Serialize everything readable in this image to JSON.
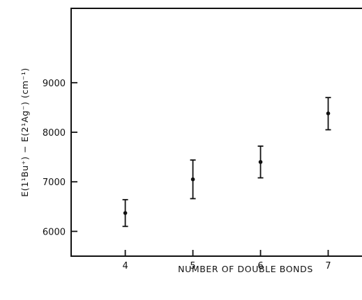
{
  "chart_data": {
    "type": "scatter",
    "title": "",
    "xlabel": "NUMBER OF DOUBLE BONDS",
    "ylabel": "E(1¹Bu⁺) − E(2¹Ag⁻) (cm⁻¹)",
    "x_ticks": [
      4,
      5,
      6,
      7
    ],
    "y_ticks": [
      6000,
      7000,
      8000,
      9000
    ],
    "xlim": [
      3.2,
      7.5
    ],
    "ylim": [
      5500,
      10500
    ],
    "grid": false,
    "series": [
      {
        "x": [
          4,
          5,
          6,
          7
        ],
        "y": [
          6370,
          7050,
          7400,
          8380
        ],
        "y_err_low": [
          6100,
          6660,
          7080,
          8050
        ],
        "y_err_high": [
          6640,
          7440,
          7720,
          8700
        ]
      }
    ]
  }
}
